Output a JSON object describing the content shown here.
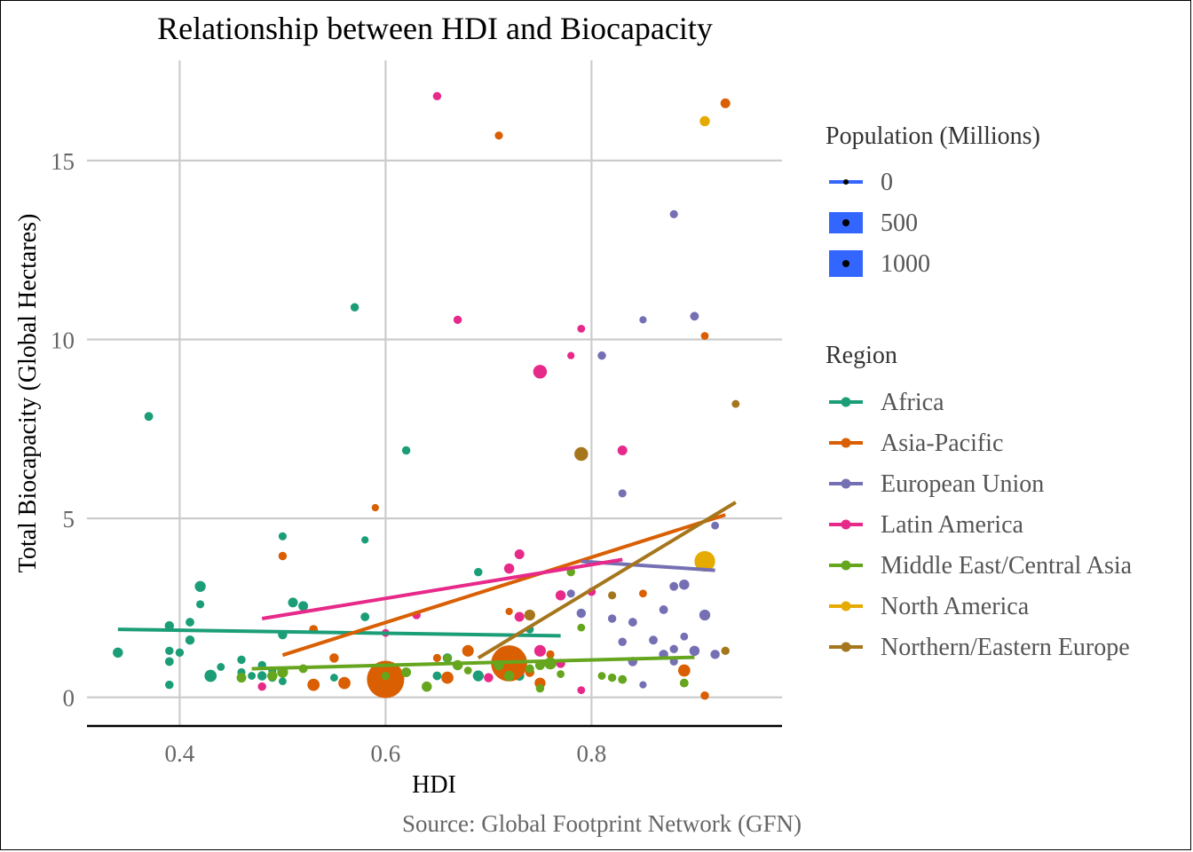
{
  "chart_data": {
    "type": "scatter",
    "title": "Relationship between HDI and Biocapacity",
    "xlabel": "HDI",
    "ylabel": "Total Biocapacity (Global Hectares)",
    "caption": "Source: Global Footprint Network (GFN)",
    "xlim": [
      0.31,
      0.985
    ],
    "ylim": [
      -0.8,
      17.8
    ],
    "xticks": [
      0.4,
      0.6,
      0.8
    ],
    "xtick_labels": [
      "0.4",
      "0.6",
      "0.8"
    ],
    "yticks": [
      0,
      5,
      10,
      15
    ],
    "ytick_labels": [
      "0",
      "5",
      "10",
      "15"
    ],
    "grid": true,
    "legend_position": "right",
    "size_legend": {
      "title": "Population (Millions)",
      "entries": [
        {
          "label": "0",
          "value": 0
        },
        {
          "label": "500",
          "value": 500
        },
        {
          "label": "1000",
          "value": 1000
        }
      ]
    },
    "color_legend": {
      "title": "Region",
      "entries": [
        "Africa",
        "Asia-Pacific",
        "European Union",
        "Latin America",
        "Middle East/Central Asia",
        "North America",
        "Northern/Eastern Europe"
      ]
    },
    "region_colors": {
      "Africa": "#1b9e77",
      "Asia-Pacific": "#d95f02",
      "European Union": "#7570b3",
      "Latin America": "#e7298a",
      "Middle East/Central Asia": "#66a61e",
      "North America": "#e6ab02",
      "Northern/Eastern Europe": "#a6761d"
    },
    "series": [
      {
        "name": "Africa",
        "trend": {
          "x": [
            0.34,
            0.77
          ],
          "y": [
            1.9,
            1.72
          ]
        },
        "points": [
          [
            0.34,
            1.25,
            30
          ],
          [
            0.37,
            7.85,
            15
          ],
          [
            0.39,
            2.0,
            20
          ],
          [
            0.39,
            1.3,
            12
          ],
          [
            0.39,
            1.0,
            15
          ],
          [
            0.39,
            0.35,
            12
          ],
          [
            0.4,
            1.25,
            12
          ],
          [
            0.41,
            2.1,
            15
          ],
          [
            0.41,
            1.6,
            20
          ],
          [
            0.42,
            3.1,
            40
          ],
          [
            0.42,
            2.6,
            10
          ],
          [
            0.43,
            0.6,
            60
          ],
          [
            0.44,
            0.85,
            8
          ],
          [
            0.46,
            1.05,
            12
          ],
          [
            0.46,
            0.7,
            10
          ],
          [
            0.47,
            0.6,
            8
          ],
          [
            0.48,
            0.9,
            12
          ],
          [
            0.48,
            0.6,
            20
          ],
          [
            0.49,
            0.75,
            10
          ],
          [
            0.49,
            0.55,
            12
          ],
          [
            0.5,
            4.5,
            10
          ],
          [
            0.5,
            1.75,
            20
          ],
          [
            0.5,
            0.45,
            8
          ],
          [
            0.51,
            2.65,
            25
          ],
          [
            0.52,
            2.55,
            25
          ],
          [
            0.55,
            0.55,
            8
          ],
          [
            0.57,
            10.9,
            12
          ],
          [
            0.58,
            4.4,
            5
          ],
          [
            0.58,
            2.25,
            15
          ],
          [
            0.62,
            6.9,
            12
          ],
          [
            0.65,
            0.6,
            15
          ],
          [
            0.66,
            1.1,
            20
          ],
          [
            0.69,
            3.5,
            12
          ],
          [
            0.69,
            0.6,
            40
          ],
          [
            0.73,
            0.6,
            25
          ],
          [
            0.74,
            1.9,
            10
          ],
          [
            0.76,
            0.95,
            30
          ]
        ]
      },
      {
        "name": "Asia-Pacific",
        "trend": {
          "x": [
            0.5,
            0.93
          ],
          "y": [
            1.18,
            5.1
          ]
        },
        "points": [
          [
            0.5,
            3.95,
            12
          ],
          [
            0.53,
            1.9,
            15
          ],
          [
            0.53,
            0.35,
            60
          ],
          [
            0.55,
            1.1,
            20
          ],
          [
            0.56,
            0.4,
            60
          ],
          [
            0.59,
            5.3,
            5
          ],
          [
            0.6,
            0.5,
            1300
          ],
          [
            0.65,
            1.1,
            10
          ],
          [
            0.66,
            0.55,
            60
          ],
          [
            0.68,
            1.3,
            50
          ],
          [
            0.71,
            15.7,
            10
          ],
          [
            0.72,
            2.4,
            5
          ],
          [
            0.72,
            0.95,
            1200
          ],
          [
            0.74,
            0.7,
            20
          ],
          [
            0.75,
            0.4,
            40
          ],
          [
            0.76,
            1.2,
            10
          ],
          [
            0.85,
            2.9,
            8
          ],
          [
            0.89,
            0.75,
            60
          ],
          [
            0.91,
            10.1,
            8
          ],
          [
            0.91,
            0.05,
            12
          ],
          [
            0.93,
            16.6,
            25
          ]
        ]
      },
      {
        "name": "European Union",
        "trend": {
          "x": [
            0.79,
            0.92
          ],
          "y": [
            3.8,
            3.55
          ]
        },
        "points": [
          [
            0.78,
            2.9,
            10
          ],
          [
            0.79,
            2.35,
            20
          ],
          [
            0.81,
            9.55,
            12
          ],
          [
            0.82,
            2.2,
            12
          ],
          [
            0.83,
            5.7,
            10
          ],
          [
            0.83,
            1.55,
            12
          ],
          [
            0.84,
            2.1,
            15
          ],
          [
            0.84,
            1.0,
            20
          ],
          [
            0.85,
            10.55,
            5
          ],
          [
            0.85,
            0.35,
            5
          ],
          [
            0.86,
            1.6,
            15
          ],
          [
            0.87,
            2.45,
            15
          ],
          [
            0.87,
            1.2,
            20
          ],
          [
            0.88,
            13.5,
            10
          ],
          [
            0.88,
            3.1,
            15
          ],
          [
            0.88,
            1.35,
            12
          ],
          [
            0.88,
            1.0,
            10
          ],
          [
            0.89,
            3.15,
            30
          ],
          [
            0.89,
            1.7,
            8
          ],
          [
            0.9,
            10.65,
            15
          ],
          [
            0.9,
            1.3,
            30
          ],
          [
            0.91,
            2.3,
            40
          ],
          [
            0.92,
            4.8,
            8
          ],
          [
            0.92,
            1.2,
            20
          ]
        ]
      },
      {
        "name": "Latin America",
        "trend": {
          "x": [
            0.48,
            0.83
          ],
          "y": [
            2.2,
            3.85
          ]
        },
        "points": [
          [
            0.48,
            0.3,
            12
          ],
          [
            0.6,
            1.8,
            8
          ],
          [
            0.63,
            2.3,
            12
          ],
          [
            0.65,
            16.8,
            12
          ],
          [
            0.67,
            10.55,
            12
          ],
          [
            0.7,
            0.55,
            20
          ],
          [
            0.72,
            3.6,
            30
          ],
          [
            0.73,
            4.0,
            25
          ],
          [
            0.73,
            2.25,
            25
          ],
          [
            0.75,
            9.1,
            90
          ],
          [
            0.75,
            1.3,
            50
          ],
          [
            0.77,
            2.85,
            30
          ],
          [
            0.77,
            0.95,
            20
          ],
          [
            0.78,
            9.55,
            5
          ],
          [
            0.79,
            10.3,
            8
          ],
          [
            0.79,
            0.2,
            8
          ],
          [
            0.8,
            2.95,
            12
          ],
          [
            0.83,
            6.9,
            25
          ]
        ]
      },
      {
        "name": "Middle East/Central Asia",
        "trend": {
          "x": [
            0.47,
            0.9
          ],
          "y": [
            0.8,
            1.12
          ]
        },
        "points": [
          [
            0.46,
            0.55,
            25
          ],
          [
            0.49,
            0.6,
            30
          ],
          [
            0.5,
            0.7,
            40
          ],
          [
            0.52,
            0.8,
            15
          ],
          [
            0.6,
            0.6,
            12
          ],
          [
            0.62,
            0.7,
            25
          ],
          [
            0.64,
            0.3,
            30
          ],
          [
            0.66,
            1.1,
            8
          ],
          [
            0.67,
            0.9,
            30
          ],
          [
            0.68,
            0.75,
            8
          ],
          [
            0.71,
            0.9,
            30
          ],
          [
            0.72,
            0.6,
            30
          ],
          [
            0.74,
            0.8,
            15
          ],
          [
            0.75,
            0.9,
            25
          ],
          [
            0.75,
            0.25,
            12
          ],
          [
            0.76,
            0.95,
            60
          ],
          [
            0.77,
            0.65,
            8
          ],
          [
            0.78,
            3.5,
            12
          ],
          [
            0.79,
            1.95,
            8
          ],
          [
            0.81,
            0.6,
            8
          ],
          [
            0.82,
            0.55,
            12
          ],
          [
            0.83,
            0.5,
            15
          ],
          [
            0.89,
            0.4,
            15
          ]
        ]
      },
      {
        "name": "North America",
        "points": [
          [
            0.91,
            16.1,
            30
          ],
          [
            0.91,
            3.8,
            300
          ]
        ]
      },
      {
        "name": "Northern/Eastern Europe",
        "trend": {
          "x": [
            0.69,
            0.94
          ],
          "y": [
            1.1,
            5.45
          ]
        },
        "points": [
          [
            0.74,
            2.3,
            40
          ],
          [
            0.79,
            6.8,
            90
          ],
          [
            0.82,
            2.85,
            10
          ],
          [
            0.94,
            8.2,
            8
          ],
          [
            0.93,
            1.3,
            12
          ]
        ]
      }
    ]
  }
}
